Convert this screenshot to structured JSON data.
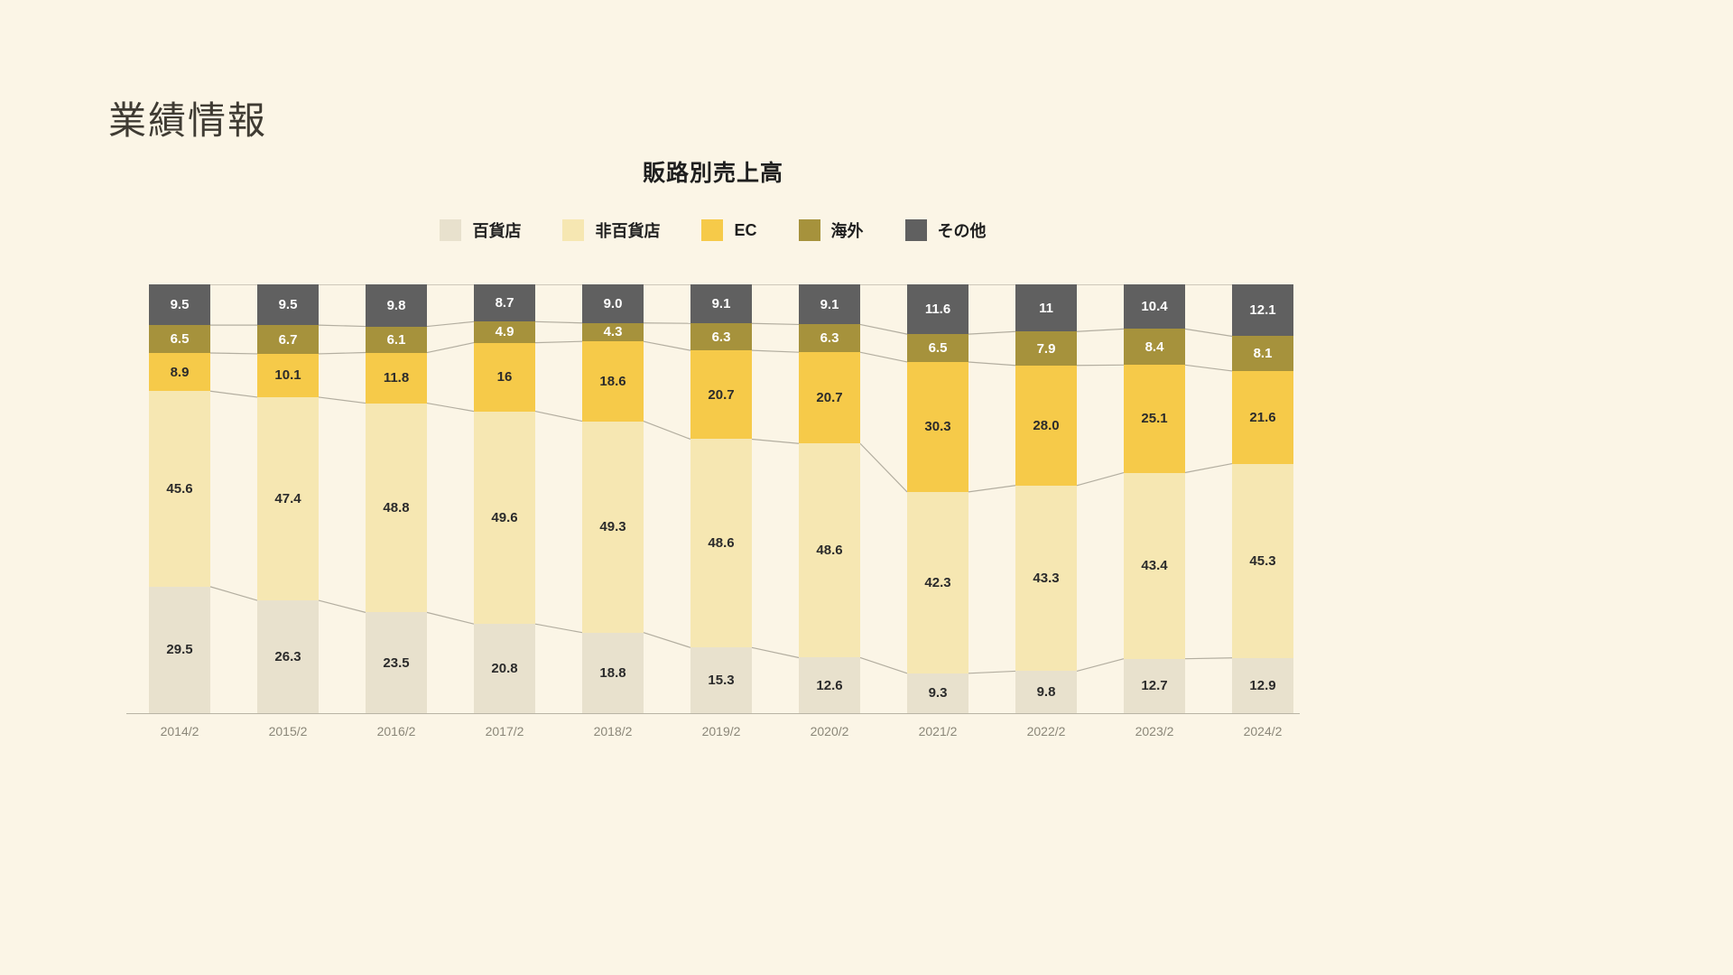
{
  "page": {
    "title": "業績情報",
    "background": "#fbf5e6"
  },
  "chart_data": {
    "type": "bar",
    "stacked": true,
    "percent_stacked": true,
    "title": "販路別売上高",
    "legend_position": "top",
    "grid": false,
    "connector_color": "#b3aea0",
    "axis_color": "#b9b4a5",
    "categories": [
      "2014/2",
      "2015/2",
      "2016/2",
      "2017/2",
      "2018/2",
      "2019/2",
      "2020/2",
      "2021/2",
      "2022/2",
      "2023/2",
      "2024/2"
    ],
    "series": [
      {
        "name": "百貨店",
        "color": "#e8e1cd",
        "label_color": "#2b2b2b",
        "values": [
          29.5,
          26.3,
          23.5,
          20.8,
          18.8,
          15.3,
          12.6,
          9.3,
          9.8,
          12.7,
          12.9
        ],
        "labels": [
          "29.5",
          "26.3",
          "23.5",
          "20.8",
          "18.8",
          "15.3",
          "12.6",
          "9.3",
          "9.8",
          "12.7",
          "12.9"
        ]
      },
      {
        "name": "非百貨店",
        "color": "#f6e7b2",
        "label_color": "#2b2b2b",
        "values": [
          45.6,
          47.4,
          48.8,
          49.6,
          49.3,
          48.6,
          48.6,
          42.3,
          43.3,
          43.4,
          45.3
        ],
        "labels": [
          "45.6",
          "47.4",
          "48.8",
          "49.6",
          "49.3",
          "48.6",
          "48.6",
          "42.3",
          "43.3",
          "43.4",
          "45.3"
        ]
      },
      {
        "name": "EC",
        "color": "#f6ca49",
        "label_color": "#2b2b2b",
        "values": [
          8.9,
          10.1,
          11.8,
          16,
          18.6,
          20.7,
          20.7,
          30.3,
          28.0,
          25.1,
          21.6
        ],
        "labels": [
          "8.9",
          "10.1",
          "11.8",
          "16",
          "18.6",
          "20.7",
          "20.7",
          "30.3",
          "28.0",
          "25.1",
          "21.6"
        ]
      },
      {
        "name": "海外",
        "color": "#a6923c",
        "label_color": "#ffffff",
        "values": [
          6.5,
          6.7,
          6.1,
          4.9,
          4.3,
          6.3,
          6.3,
          6.5,
          7.9,
          8.4,
          8.1
        ],
        "labels": [
          "6.5",
          "6.7",
          "6.1",
          "4.9",
          "4.3",
          "6.3",
          "6.3",
          "6.5",
          "7.9",
          "8.4",
          "8.1"
        ]
      },
      {
        "name": "その他",
        "color": "#606060",
        "label_color": "#ffffff",
        "values": [
          9.5,
          9.5,
          9.8,
          8.7,
          9.0,
          9.1,
          9.1,
          11.6,
          11,
          10.4,
          12.1
        ],
        "labels": [
          "9.5",
          "9.5",
          "9.8",
          "8.7",
          "9.0",
          "9.1",
          "9.1",
          "11.6",
          "11",
          "10.4",
          "12.1"
        ]
      }
    ]
  }
}
